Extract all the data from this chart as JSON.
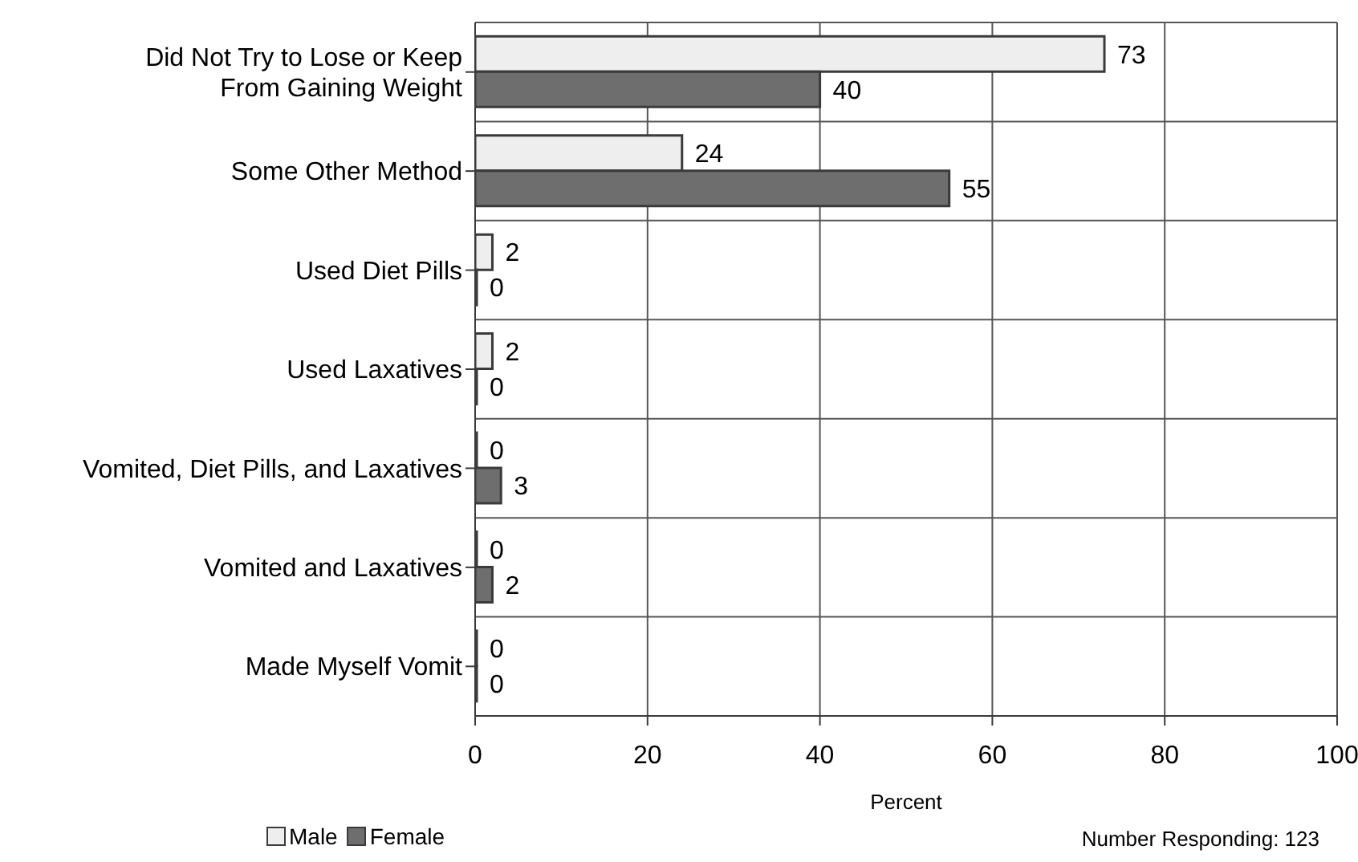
{
  "chart_data": {
    "type": "bar",
    "orientation": "horizontal",
    "categories": [
      "Did Not Try to Lose or Keep\nFrom Gaining Weight",
      "Some Other Method",
      "Used Diet Pills",
      "Used Laxatives",
      "Vomited, Diet Pills, and Laxatives",
      "Vomited and Laxatives",
      "Made Myself Vomit"
    ],
    "series": [
      {
        "name": "Male",
        "color": "#eeeeee",
        "values": [
          73,
          24,
          2,
          2,
          0,
          0,
          0
        ]
      },
      {
        "name": "Female",
        "color": "#6e6e6e",
        "values": [
          40,
          55,
          0,
          0,
          3,
          2,
          0
        ]
      }
    ],
    "xlabel": "Percent",
    "xlim": [
      0,
      100
    ],
    "xticks": [
      0,
      20,
      40,
      60,
      80,
      100
    ],
    "grid": true,
    "legend": "bottom left",
    "data_labels": true,
    "annotations": [
      "Number Responding: 123"
    ]
  }
}
